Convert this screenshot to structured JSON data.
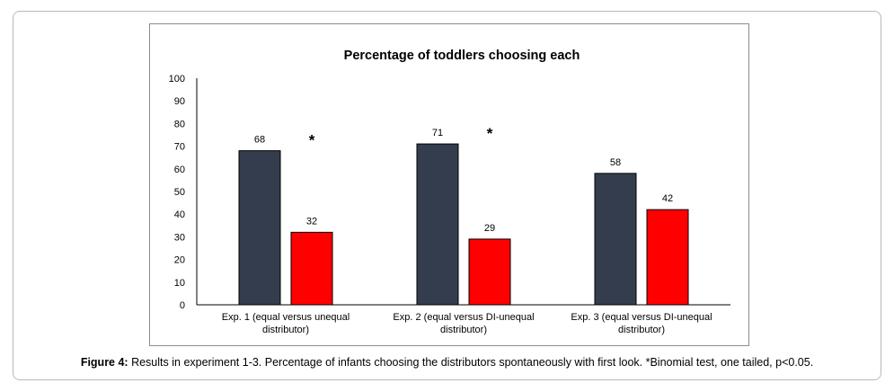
{
  "chart_data": {
    "type": "bar",
    "title": "Percentage of toddlers choosing each",
    "xlabel": "",
    "ylabel": "",
    "ylim": [
      0,
      100
    ],
    "yticks": [
      0,
      10,
      20,
      30,
      40,
      50,
      60,
      70,
      80,
      90,
      100
    ],
    "grid": false,
    "legend": "none",
    "categories": [
      [
        "Exp. 1 (equal versus unequal",
        "distributor)"
      ],
      [
        "Exp. 2 (equal versus DI-unequal",
        "distributor)"
      ],
      [
        "Exp. 3 (equal versus DI-unequal",
        "distributor)"
      ]
    ],
    "series": [
      {
        "values": [
          68,
          71,
          58
        ],
        "color": "#333d4e"
      },
      {
        "values": [
          32,
          29,
          42
        ],
        "color": "#ff0000"
      }
    ],
    "significance_marker": "*",
    "significant": [
      true,
      true,
      false
    ]
  },
  "caption": {
    "label": "Figure 4:",
    "text": " Results in experiment 1-3. Percentage of infants choosing the distributors spontaneously with first look. *Binomial test, one tailed, p<0.05."
  }
}
